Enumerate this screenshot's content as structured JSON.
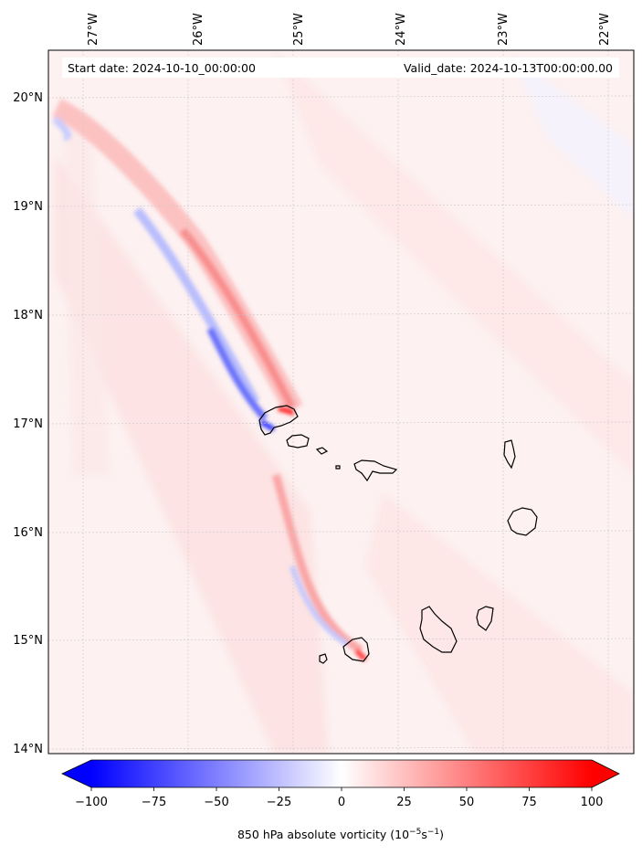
{
  "header": {
    "start_date": "Start date: 2024-10-10_00:00:00",
    "valid_date": "Valid_date: 2024-10-13T00:00:00.00"
  },
  "map": {
    "lon_labels": [
      "27°W",
      "26°W",
      "25°W",
      "24°W",
      "23°W",
      "22°W"
    ],
    "lat_labels": [
      "20°N",
      "19°N",
      "18°N",
      "17°N",
      "16°N",
      "15°N",
      "14°N"
    ],
    "gridlines": true,
    "features": [
      "Santo Antão",
      "São Vicente",
      "Santa Luzia",
      "São Nicolau",
      "Sal",
      "Boa Vista",
      "Maio",
      "Santiago",
      "Fogo",
      "Brava"
    ]
  },
  "colorbar": {
    "min": -100,
    "max": 100,
    "tick_labels": [
      "−100",
      "−75",
      "−50",
      "−25",
      "0",
      "25",
      "50",
      "75",
      "100"
    ],
    "extend": "both",
    "colormap": "bwr",
    "color_low": "#0000ff",
    "color_mid": "#ffffff",
    "color_high": "#ff0000",
    "label_main": "850 hPa absolute vorticity (10",
    "label_exp1": "−5",
    "label_mid": "s",
    "label_exp2": "−1",
    "label_end": ")"
  }
}
